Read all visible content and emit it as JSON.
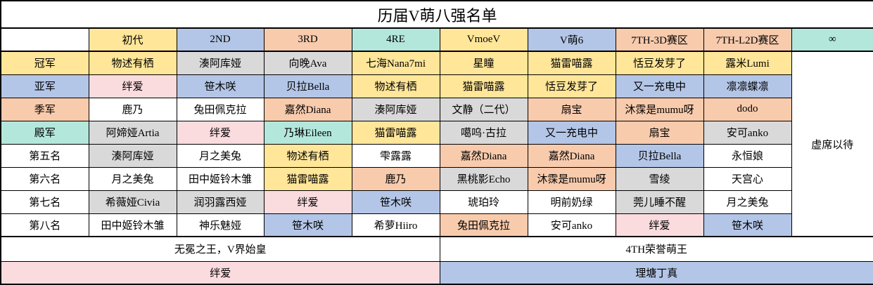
{
  "title": "历届V萌八强名单",
  "palette": {
    "white": "#FFFFFF",
    "yellow": "#FFE699",
    "blue": "#B4C6E7",
    "peach": "#F8CBAD",
    "teal": "#B3E7DC",
    "gray": "#D9D9D9",
    "pink": "#FADBDE",
    "border": "#000000"
  },
  "columns": [
    {
      "label": "",
      "bg": "white"
    },
    {
      "label": "初代",
      "bg": "yellow"
    },
    {
      "label": "2ND",
      "bg": "blue"
    },
    {
      "label": "3RD",
      "bg": "peach"
    },
    {
      "label": "4RE",
      "bg": "teal"
    },
    {
      "label": "VmoeV",
      "bg": "yellow"
    },
    {
      "label": "V萌6",
      "bg": "blue"
    },
    {
      "label": "7TH-3D赛区",
      "bg": "peach"
    },
    {
      "label": "7TH-L2D赛区",
      "bg": "peach"
    },
    {
      "label": "∞",
      "bg": "teal"
    }
  ],
  "rows": [
    {
      "label": "冠军",
      "label_bg": "yellow",
      "cells": [
        {
          "t": "物述有栖",
          "bg": "yellow"
        },
        {
          "t": "湊阿库娅",
          "bg": "gray"
        },
        {
          "t": "向晚Ava",
          "bg": "gray"
        },
        {
          "t": "七海Nana7mi",
          "bg": "yellow"
        },
        {
          "t": "星瞳",
          "bg": "yellow"
        },
        {
          "t": "猫雷喵露",
          "bg": "yellow"
        },
        {
          "t": "恬豆发芽了",
          "bg": "yellow"
        },
        {
          "t": "露米Lumi",
          "bg": "yellow"
        }
      ]
    },
    {
      "label": "亚军",
      "label_bg": "blue",
      "cells": [
        {
          "t": "绊爱",
          "bg": "pink"
        },
        {
          "t": "笹木咲",
          "bg": "blue"
        },
        {
          "t": "贝拉Bella",
          "bg": "blue"
        },
        {
          "t": "物述有栖",
          "bg": "yellow"
        },
        {
          "t": "猫雷喵露",
          "bg": "yellow"
        },
        {
          "t": "恬豆发芽了",
          "bg": "yellow"
        },
        {
          "t": "又一充电中",
          "bg": "blue"
        },
        {
          "t": "凛凛蝶凛",
          "bg": "blue"
        }
      ]
    },
    {
      "label": "季军",
      "label_bg": "peach",
      "cells": [
        {
          "t": "鹿乃",
          "bg": "white"
        },
        {
          "t": "兔田佩克拉",
          "bg": "white"
        },
        {
          "t": "嘉然Diana",
          "bg": "peach"
        },
        {
          "t": "湊阿库娅",
          "bg": "gray"
        },
        {
          "t": "文静（二代）",
          "bg": "gray"
        },
        {
          "t": "扇宝",
          "bg": "peach"
        },
        {
          "t": "沐霂是mumu呀",
          "bg": "peach"
        },
        {
          "t": "dodo",
          "bg": "peach"
        }
      ]
    },
    {
      "label": "殿军",
      "label_bg": "teal",
      "cells": [
        {
          "t": "阿媂娅Artia",
          "bg": "gray"
        },
        {
          "t": "绊爱",
          "bg": "pink"
        },
        {
          "t": "乃琳Eileen",
          "bg": "teal"
        },
        {
          "t": "猫雷喵露",
          "bg": "yellow"
        },
        {
          "t": "噶呜·古拉",
          "bg": "gray"
        },
        {
          "t": "又一充电中",
          "bg": "blue"
        },
        {
          "t": "扇宝",
          "bg": "peach"
        },
        {
          "t": "安可anko",
          "bg": "gray"
        }
      ]
    },
    {
      "label": "第五名",
      "label_bg": "white",
      "cells": [
        {
          "t": "湊阿库娅",
          "bg": "gray"
        },
        {
          "t": "月之美兔",
          "bg": "white"
        },
        {
          "t": "物述有栖",
          "bg": "yellow"
        },
        {
          "t": "雫露露",
          "bg": "white"
        },
        {
          "t": "嘉然Diana",
          "bg": "peach"
        },
        {
          "t": "嘉然Diana",
          "bg": "peach"
        },
        {
          "t": "贝拉Bella",
          "bg": "blue"
        },
        {
          "t": "永恒娘",
          "bg": "white"
        }
      ]
    },
    {
      "label": "第六名",
      "label_bg": "white",
      "cells": [
        {
          "t": "月之美兔",
          "bg": "white"
        },
        {
          "t": "田中姬铃木雏",
          "bg": "white"
        },
        {
          "t": "猫雷喵露",
          "bg": "yellow"
        },
        {
          "t": "鹿乃",
          "bg": "peach"
        },
        {
          "t": "黑桃影Echo",
          "bg": "gray"
        },
        {
          "t": "沐霂是mumu呀",
          "bg": "peach"
        },
        {
          "t": "雪绫",
          "bg": "gray"
        },
        {
          "t": "天宫心",
          "bg": "white"
        }
      ]
    },
    {
      "label": "第七名",
      "label_bg": "white",
      "cells": [
        {
          "t": "希薇娅Civia",
          "bg": "gray"
        },
        {
          "t": "润羽露西娅",
          "bg": "gray"
        },
        {
          "t": "绊爱",
          "bg": "pink"
        },
        {
          "t": "笹木咲",
          "bg": "blue"
        },
        {
          "t": "琥珀玲",
          "bg": "white"
        },
        {
          "t": "明前奶绿",
          "bg": "white"
        },
        {
          "t": "莞儿睡不醒",
          "bg": "gray"
        },
        {
          "t": "月之美兔",
          "bg": "white"
        }
      ]
    },
    {
      "label": "第八名",
      "label_bg": "white",
      "cells": [
        {
          "t": "田中姬铃木雏",
          "bg": "white"
        },
        {
          "t": "神乐魅娅",
          "bg": "white"
        },
        {
          "t": "笹木咲",
          "bg": "blue"
        },
        {
          "t": "希萝Hiiro",
          "bg": "white"
        },
        {
          "t": "兔田佩克拉",
          "bg": "peach"
        },
        {
          "t": "安可anko",
          "bg": "white"
        },
        {
          "t": "绊爱",
          "bg": "pink"
        },
        {
          "t": "笹木咲",
          "bg": "blue"
        }
      ]
    }
  ],
  "infinity_cell": {
    "t": "虚席以待",
    "bg": "white"
  },
  "footer": {
    "left_top": {
      "t": "无冕之王，V界始皇",
      "bg": "white"
    },
    "right_top": {
      "t": "4TH荣誉萌王",
      "bg": "white"
    },
    "left_bottom": {
      "t": "绊爱",
      "bg": "pink"
    },
    "right_bottom": {
      "t": "理塘丁真",
      "bg": "blue"
    }
  }
}
